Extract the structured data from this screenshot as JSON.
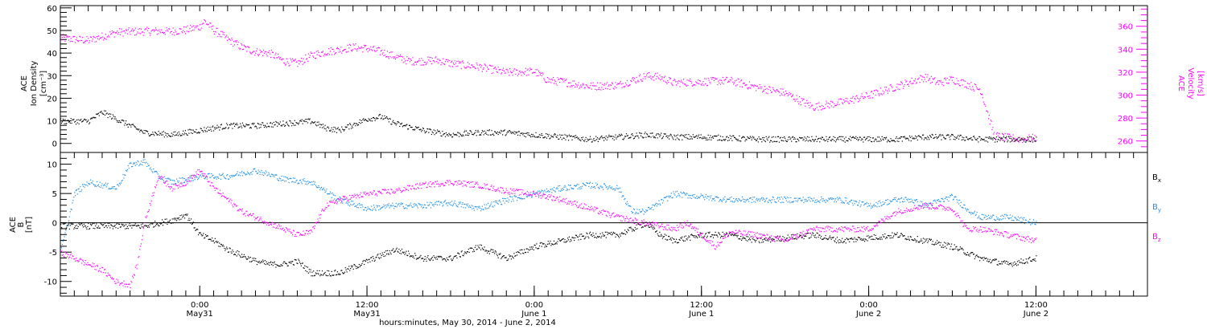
{
  "colors": {
    "axis": "#000000",
    "black": "#000000",
    "magenta": "#ff00ff",
    "blue": "#1e8fe6"
  },
  "x_axis": {
    "label": "hours:minutes, May 30, 2014 - June  2, 2014",
    "ticks": [
      {
        "hours": 10,
        "line1": "0:00",
        "line2": "May31"
      },
      {
        "hours": 22,
        "line1": "12:00",
        "line2": "May31"
      },
      {
        "hours": 34,
        "line1": "0:00",
        "line2": "June 1"
      },
      {
        "hours": 46,
        "line1": "12:00",
        "line2": "June 1"
      },
      {
        "hours": 58,
        "line1": "0:00",
        "line2": "June 2"
      },
      {
        "hours": 70,
        "line1": "12:00",
        "line2": "June 2"
      }
    ]
  },
  "chart_data": [
    {
      "type": "scatter",
      "x_units": "hours after May 30, 2014 14:00 UT",
      "xlim": [
        0,
        78
      ],
      "ylabel_left": [
        "ACE",
        "Ion Density",
        "[cm⁻³]"
      ],
      "ylabel_right": [
        "ACE",
        "Velocity",
        "[km/s]"
      ],
      "ylim_left": [
        -4,
        61
      ],
      "yticks_left": [
        0,
        10,
        20,
        30,
        40,
        50,
        60
      ],
      "ylim_right": [
        250,
        378
      ],
      "yticks_right": [
        260,
        280,
        300,
        320,
        340,
        360
      ],
      "series": [
        {
          "color": "magenta",
          "axis": "right",
          "x": [
            0,
            2,
            4,
            6,
            8,
            9,
            10,
            10.3,
            11,
            12,
            13,
            14,
            15,
            16,
            17,
            18,
            19,
            20,
            21,
            22,
            23,
            24,
            25,
            26,
            27,
            28,
            30,
            32,
            34,
            35,
            36,
            38,
            40,
            42,
            43,
            44,
            46,
            48,
            50,
            52,
            53,
            54,
            56,
            58,
            60,
            61,
            62,
            63,
            64,
            65,
            66,
            67,
            68,
            69,
            70
          ],
          "values": [
            350,
            348,
            355,
            356,
            356,
            357,
            360,
            365,
            357,
            349,
            342,
            338,
            337,
            330,
            328,
            335,
            338,
            340,
            342,
            341,
            338,
            334,
            330,
            330,
            331,
            328,
            325,
            320,
            321,
            313,
            312,
            308,
            309,
            317,
            316,
            311,
            312,
            313,
            307,
            302,
            296,
            290,
            294,
            300,
            308,
            312,
            316,
            311,
            314,
            310,
            305,
            265,
            263,
            262,
            263
          ]
        },
        {
          "color": "black",
          "axis": "left",
          "x": [
            0,
            2,
            3,
            4,
            5,
            6,
            8,
            10,
            12,
            14,
            16,
            18,
            19,
            20,
            22,
            23,
            24,
            26,
            28,
            30,
            32,
            34,
            36,
            38,
            40,
            42,
            44,
            46,
            50,
            54,
            58,
            60,
            62,
            64,
            66,
            68,
            70
          ],
          "values": [
            10,
            10,
            14,
            11,
            8,
            5,
            4,
            6,
            8,
            8,
            9,
            10,
            7,
            6,
            11,
            12,
            9,
            6,
            4,
            5,
            5,
            4,
            3,
            2,
            3,
            4,
            3,
            3,
            2,
            2,
            2,
            2,
            3,
            3,
            2,
            2,
            2
          ]
        }
      ]
    },
    {
      "type": "scatter",
      "x_units": "hours after May 30, 2014 14:00 UT",
      "xlim": [
        0,
        78
      ],
      "ylabel": [
        "ACE",
        "B",
        "[nT]"
      ],
      "ylim": [
        -12.5,
        12
      ],
      "yticks": [
        -10,
        -5,
        0,
        5,
        10
      ],
      "legend_placement": "right",
      "series": [
        {
          "name": "Bx",
          "color": "black",
          "x": [
            0,
            2,
            4,
            6,
            8,
            9,
            10,
            11,
            12,
            13,
            14,
            15,
            16,
            17,
            18,
            20,
            22,
            24,
            26,
            28,
            30,
            32,
            34,
            36,
            38,
            40,
            41,
            42,
            43,
            44,
            46,
            48,
            50,
            52,
            54,
            56,
            58,
            60,
            62,
            64,
            65,
            66,
            68,
            70
          ],
          "values": [
            -0.5,
            -0.5,
            -0.5,
            -0.5,
            0.5,
            1.5,
            -2,
            -3,
            -4.5,
            -5.5,
            -6.5,
            -7,
            -7,
            -6.5,
            -8.5,
            -8.5,
            -6.5,
            -4.5,
            -6,
            -6,
            -4,
            -6,
            -4,
            -3,
            -2,
            -2,
            -1,
            0,
            -2,
            -3,
            -2,
            -2,
            -3,
            -2.5,
            -2,
            -3,
            -2.5,
            -2,
            -3,
            -4,
            -5,
            -6,
            -7,
            -6
          ]
        },
        {
          "name": "By",
          "color": "blue",
          "x": [
            0,
            1,
            2,
            4,
            5,
            6,
            7,
            8,
            10,
            12,
            14,
            16,
            18,
            20,
            22,
            24,
            26,
            28,
            30,
            32,
            34,
            36,
            38,
            40,
            41,
            42,
            44,
            46,
            48,
            50,
            52,
            54,
            56,
            58,
            60,
            61,
            62,
            64,
            65,
            66,
            68,
            70
          ],
          "values": [
            -5,
            5,
            7,
            6,
            10,
            10.5,
            8,
            7,
            8,
            8,
            9,
            7.5,
            7,
            4,
            2.5,
            3,
            3,
            3.5,
            2.5,
            4,
            5,
            6,
            6.5,
            6,
            2,
            2,
            5,
            4.5,
            4,
            4,
            4,
            4,
            4,
            3,
            4,
            4,
            3,
            4.5,
            2.5,
            1,
            1,
            0
          ]
        },
        {
          "name": "Bz",
          "color": "magenta",
          "x": [
            0,
            1,
            2,
            3,
            4,
            5,
            5.5,
            6,
            7,
            8,
            9,
            10,
            11,
            12,
            13,
            14,
            15,
            16,
            17,
            18,
            19,
            20,
            22,
            24,
            26,
            28,
            30,
            32,
            34,
            36,
            38,
            40,
            42,
            44,
            45,
            46,
            47,
            48,
            50,
            52,
            54,
            56,
            58,
            60,
            62,
            64,
            65,
            66,
            68,
            70
          ],
          "values": [
            -5,
            -6,
            -7,
            -8,
            -10,
            -10.5,
            -7,
            0,
            8,
            6,
            7,
            9,
            6,
            4,
            2,
            1,
            0,
            -1,
            -2,
            -1.5,
            3,
            4,
            5,
            5.5,
            6.5,
            7,
            6.5,
            5.5,
            5,
            4,
            2.5,
            1,
            0,
            -1,
            0,
            -2,
            -4,
            -1.5,
            -2,
            -3,
            -1,
            -1,
            -1,
            2,
            3,
            2.5,
            -1,
            -1,
            -2,
            -3
          ]
        }
      ]
    }
  ],
  "legend": {
    "bx_main": "B",
    "bx_sub": "x",
    "by_main": "B",
    "by_sub": "y",
    "bz_main": "B",
    "bz_sub": "z"
  }
}
